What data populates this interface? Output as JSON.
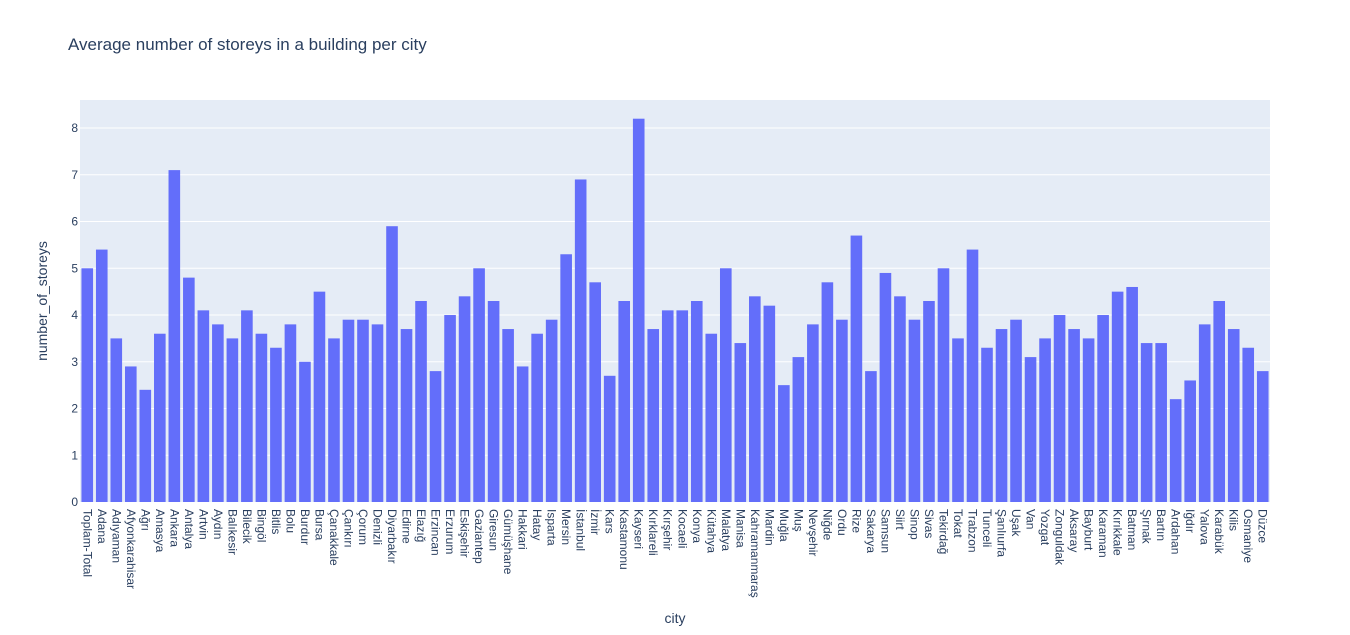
{
  "chart_data": {
    "type": "bar",
    "title": "Average number of storeys in a building per city",
    "xlabel": "city",
    "ylabel": "number_of_storeys",
    "ylim": [
      0,
      8.6
    ],
    "yticks": [
      0,
      1,
      2,
      3,
      4,
      5,
      6,
      7,
      8
    ],
    "grid": true,
    "bar_color": "#636efa",
    "plot_bg": "#e5ecf6",
    "categories": [
      "Toplam-Total",
      "Adana",
      "Adıyaman",
      "Afyonkarahisar",
      "Ağrı",
      "Amasya",
      "Ankara",
      "Antalya",
      "Artvin",
      "Aydın",
      "Balıkesir",
      "Bilecik",
      "Bingöl",
      "Bitlis",
      "Bolu",
      "Burdur",
      "Bursa",
      "Çanakkale",
      "Çankırı",
      "Çorum",
      "Denizli",
      "Diyarbakır",
      "Edirne",
      "Elazığ",
      "Erzincan",
      "Erzurum",
      "Eskişehir",
      "Gaziantep",
      "Giresun",
      "Gümüşhane",
      "Hakkari",
      "Hatay",
      "Isparta",
      "Mersin",
      "İstanbul",
      "İzmir",
      "Kars",
      "Kastamonu",
      "Kayseri",
      "Kırklareli",
      "Kırşehir",
      "Kocaeli",
      "Konya",
      "Kütahya",
      "Malatya",
      "Manisa",
      "Kahramanmaraş",
      "Mardin",
      "Muğla",
      "Muş",
      "Nevşehir",
      "Niğde",
      "Ordu",
      "Rize",
      "Sakarya",
      "Samsun",
      "Siirt",
      "Sinop",
      "Sivas",
      "Tekirdağ",
      "Tokat",
      "Trabzon",
      "Tunceli",
      "Şanlıurfa",
      "Uşak",
      "Van",
      "Yozgat",
      "Zonguldak",
      "Aksaray",
      "Bayburt",
      "Karaman",
      "Kırıkkale",
      "Batman",
      "Şırnak",
      "Bartın",
      "Ardahan",
      "Iğdır",
      "Yalova",
      "Karabük",
      "Kilis",
      "Osmaniye",
      "Düzce"
    ],
    "values": [
      5.0,
      5.4,
      3.5,
      2.9,
      2.4,
      3.6,
      7.1,
      4.8,
      4.1,
      3.8,
      3.5,
      4.1,
      3.6,
      3.3,
      3.8,
      3.0,
      4.5,
      3.5,
      3.9,
      3.9,
      3.8,
      5.9,
      3.7,
      4.3,
      2.8,
      4.0,
      4.4,
      5.0,
      4.3,
      3.7,
      2.9,
      3.6,
      3.9,
      5.3,
      6.9,
      4.7,
      2.7,
      4.3,
      8.2,
      3.7,
      4.1,
      4.1,
      4.3,
      3.6,
      5.0,
      3.4,
      4.4,
      4.2,
      2.5,
      3.1,
      3.8,
      4.7,
      3.9,
      5.7,
      2.8,
      4.9,
      4.4,
      3.9,
      4.3,
      5.0,
      3.5,
      5.4,
      3.3,
      3.7,
      3.9,
      3.1,
      3.5,
      4.0,
      3.7,
      3.5,
      4.0,
      4.5,
      4.6,
      3.4,
      3.4,
      2.2,
      2.6,
      3.8,
      4.3,
      3.7,
      3.3,
      2.8
    ]
  }
}
